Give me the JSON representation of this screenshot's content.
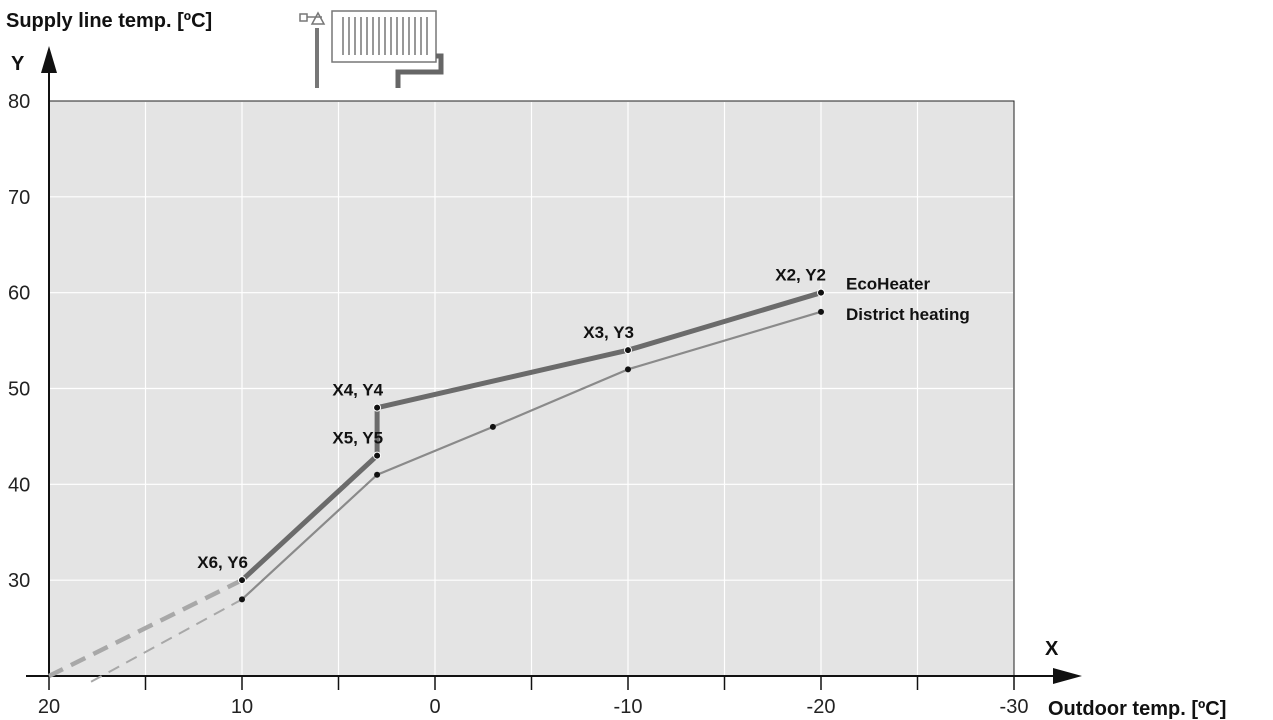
{
  "chart_data": {
    "type": "line",
    "title": "",
    "ylabel": "Supply line temp. [ºC]",
    "xlabel": "Outdoor temp. [ºC]",
    "y_axis_letter": "Y",
    "x_axis_letter": "X",
    "xlim": [
      20,
      -30
    ],
    "ylim": [
      20,
      80
    ],
    "x_ticks": [
      20,
      15,
      10,
      5,
      0,
      -5,
      -10,
      -15,
      -20,
      -25,
      -30
    ],
    "x_tick_labels": [
      "20",
      "",
      "10",
      "",
      "0",
      "",
      "-10",
      "",
      "-20",
      "",
      "-30"
    ],
    "y_ticks": [
      30,
      40,
      50,
      60,
      70,
      80
    ],
    "y_tick_labels": [
      "30",
      "40",
      "50",
      "60",
      "70",
      "80"
    ],
    "grid": true,
    "legend": "right",
    "colors": {
      "plot_bg": "#e4e4e4",
      "grid": "#ffffff",
      "ecoheater": "#6b6b6b",
      "district": "#8a8a8a",
      "extension": "#a8a8a8",
      "axis": "#111111"
    },
    "series": [
      {
        "name": "EcoHeater",
        "x": [
          -20,
          -10,
          3,
          3,
          10
        ],
        "y": [
          60,
          54,
          48,
          43,
          30
        ],
        "point_labels": [
          "X2, Y2",
          "X3, Y3",
          "X4, Y4",
          "X5, Y5",
          "X6, Y6"
        ],
        "extension": {
          "x": [
            10,
            20
          ],
          "y": [
            30,
            20
          ]
        }
      },
      {
        "name": "District heating",
        "x": [
          -20,
          -10,
          -3,
          3,
          10
        ],
        "y": [
          58,
          52,
          46,
          41,
          28
        ],
        "extension": {
          "x": [
            10,
            18
          ],
          "y": [
            28,
            19.2
          ]
        }
      }
    ]
  },
  "icons": {
    "radiator": "radiator-with-valve-icon"
  }
}
